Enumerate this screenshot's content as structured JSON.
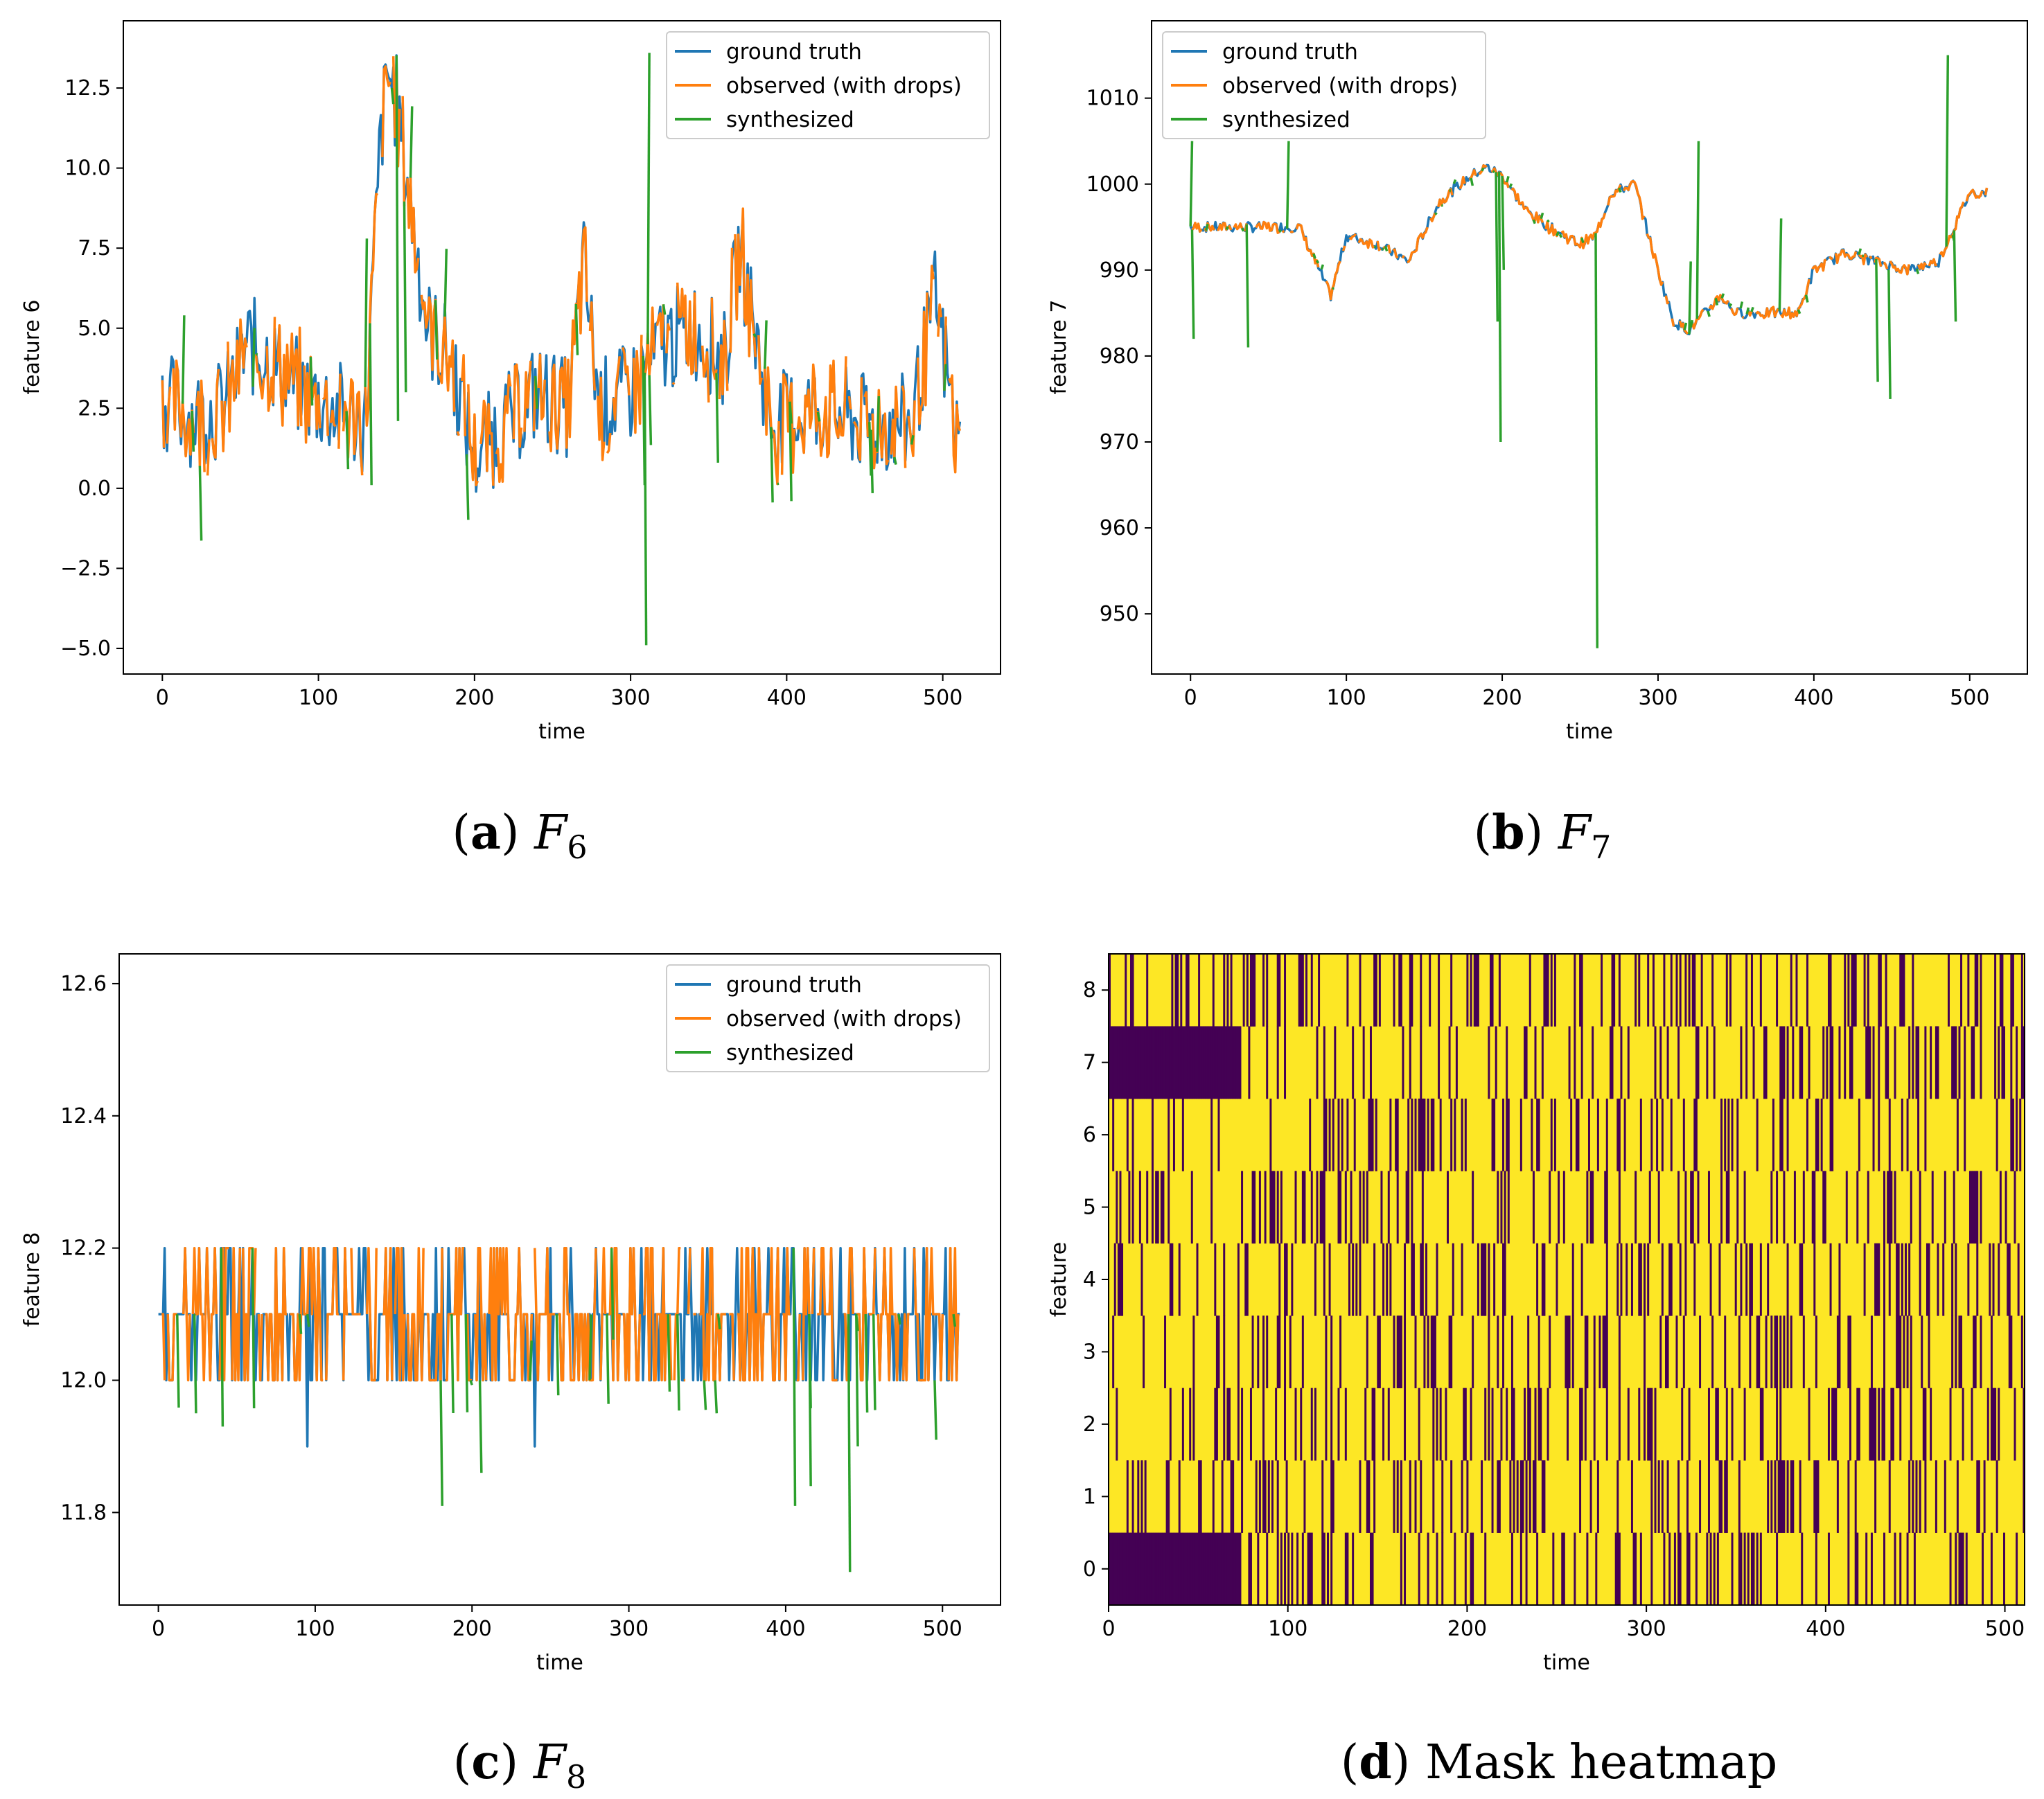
{
  "chart_data": [
    {
      "id": "a",
      "type": "line",
      "caption": {
        "letter": "a",
        "text": "F",
        "sub": "6"
      },
      "xlabel": "time",
      "ylabel": "feature 6",
      "xlim": [
        -25,
        537
      ],
      "ylim": [
        -5.8,
        14.6
      ],
      "xticks": [
        0,
        100,
        200,
        300,
        400,
        500
      ],
      "yticks": [
        -5.0,
        -2.5,
        0.0,
        2.5,
        5.0,
        7.5,
        10.0,
        12.5
      ],
      "ytick_labels": [
        "−5.0",
        "−2.5",
        "0.0",
        "2.5",
        "5.0",
        "7.5",
        "10.0",
        "12.5"
      ],
      "legend_position": "top-right",
      "legend": [
        "ground truth",
        "observed (with drops)",
        "synthesized"
      ],
      "colors": {
        "ground truth": "#1f77b4",
        "observed (with drops)": "#ff7f0e",
        "synthesized": "#2ca02c"
      },
      "series_profile": {
        "base": [
          [
            0,
            2.8
          ],
          [
            20,
            2.2
          ],
          [
            40,
            2.5
          ],
          [
            55,
            4.5
          ],
          [
            70,
            4.0
          ],
          [
            90,
            3.0
          ],
          [
            110,
            2.5
          ],
          [
            130,
            2.0
          ],
          [
            140,
            11.0
          ],
          [
            145,
            13.0
          ],
          [
            150,
            12.0
          ],
          [
            160,
            8.5
          ],
          [
            170,
            5.0
          ],
          [
            185,
            4.0
          ],
          [
            200,
            1.0
          ],
          [
            220,
            2.0
          ],
          [
            240,
            3.0
          ],
          [
            260,
            2.5
          ],
          [
            270,
            7.0
          ],
          [
            280,
            2.5
          ],
          [
            300,
            3.0
          ],
          [
            320,
            4.5
          ],
          [
            340,
            5.0
          ],
          [
            360,
            4.0
          ],
          [
            370,
            7.5
          ],
          [
            390,
            2.0
          ],
          [
            420,
            2.5
          ],
          [
            450,
            2.0
          ],
          [
            480,
            2.0
          ],
          [
            495,
            6.0
          ],
          [
            510,
            1.2
          ]
        ],
        "noise": 1.6,
        "seed": 6,
        "synth_spikes": [
          [
            13,
            5.4
          ],
          [
            130,
            7.8
          ],
          [
            133,
            0.1
          ],
          [
            147,
            12.0
          ],
          [
            150,
            2.1
          ],
          [
            155,
            3.0
          ],
          [
            308,
            0.1
          ],
          [
            309,
            -4.9
          ],
          [
            311,
            13.6
          ],
          [
            402,
            -0.4
          ],
          [
            355,
            0.8
          ]
        ]
      }
    },
    {
      "id": "b",
      "type": "line",
      "caption": {
        "letter": "b",
        "text": "F",
        "sub": "7"
      },
      "xlabel": "time",
      "ylabel": "feature 7",
      "xlim": [
        -25,
        537
      ],
      "ylim": [
        943,
        1019
      ],
      "xticks": [
        0,
        100,
        200,
        300,
        400,
        500
      ],
      "yticks": [
        950,
        960,
        970,
        980,
        990,
        1000,
        1010
      ],
      "ytick_labels": [
        "950",
        "960",
        "970",
        "980",
        "990",
        "1000",
        "1010"
      ],
      "legend_position": "top-left",
      "legend": [
        "ground truth",
        "observed (with drops)",
        "synthesized"
      ],
      "colors": {
        "ground truth": "#1f77b4",
        "observed (with drops)": "#ff7f0e",
        "synthesized": "#2ca02c"
      },
      "series_profile": {
        "base": [
          [
            0,
            995
          ],
          [
            70,
            995
          ],
          [
            90,
            987
          ],
          [
            100,
            994
          ],
          [
            120,
            993
          ],
          [
            140,
            991
          ],
          [
            160,
            998
          ],
          [
            180,
            1001
          ],
          [
            190,
            1002
          ],
          [
            200,
            1001
          ],
          [
            215,
            997
          ],
          [
            230,
            995
          ],
          [
            250,
            993
          ],
          [
            260,
            994
          ],
          [
            270,
            999
          ],
          [
            285,
            1000
          ],
          [
            300,
            990
          ],
          [
            310,
            984
          ],
          [
            320,
            983
          ],
          [
            330,
            985
          ],
          [
            340,
            987
          ],
          [
            350,
            985
          ],
          [
            370,
            985
          ],
          [
            390,
            985
          ],
          [
            400,
            990
          ],
          [
            420,
            992
          ],
          [
            440,
            991
          ],
          [
            460,
            990
          ],
          [
            480,
            991
          ],
          [
            490,
            995
          ],
          [
            500,
            999
          ],
          [
            510,
            999
          ]
        ],
        "noise": 0.6,
        "seed": 7,
        "synth_spikes": [
          [
            0,
            1005
          ],
          [
            1,
            982
          ],
          [
            36,
            981
          ],
          [
            62,
            1005
          ],
          [
            196,
            984
          ],
          [
            198,
            970
          ],
          [
            200,
            990
          ],
          [
            260,
            946
          ],
          [
            325,
            1005
          ],
          [
            320,
            991
          ],
          [
            378,
            996
          ],
          [
            440,
            977
          ],
          [
            448,
            975
          ],
          [
            485,
            1015
          ],
          [
            490,
            984
          ]
        ]
      }
    },
    {
      "id": "c",
      "type": "line",
      "caption": {
        "letter": "c",
        "text": "F",
        "sub": "8"
      },
      "xlabel": "time",
      "ylabel": "feature 8",
      "xlim": [
        -25,
        537
      ],
      "ylim": [
        11.66,
        12.645
      ],
      "xticks": [
        0,
        100,
        200,
        300,
        400,
        500
      ],
      "yticks": [
        11.8,
        12.0,
        12.2,
        12.4,
        12.6
      ],
      "ytick_labels": [
        "11.8",
        "12.0",
        "12.2",
        "12.4",
        "12.6"
      ],
      "legend_position": "top-right",
      "legend": [
        "ground truth",
        "observed (with drops)",
        "synthesized"
      ],
      "colors": {
        "ground truth": "#1f77b4",
        "observed (with drops)": "#ff7f0e",
        "synthesized": "#2ca02c"
      },
      "series_profile": {
        "levels": [
          12.0,
          12.1,
          12.2
        ],
        "seed": 8,
        "synth_spikes": [
          [
            23,
            11.95
          ],
          [
            40,
            11.93
          ],
          [
            90,
            12.07
          ],
          [
            180,
            11.81
          ],
          [
            205,
            11.86
          ],
          [
            355,
            11.95
          ],
          [
            405,
            11.81
          ],
          [
            415,
            11.84
          ],
          [
            440,
            11.71
          ],
          [
            445,
            11.9
          ],
          [
            495,
            11.91
          ]
        ],
        "gt_dips": [
          [
            95,
            11.9
          ],
          [
            240,
            11.9
          ]
        ]
      }
    },
    {
      "id": "d",
      "type": "heatmap",
      "caption": {
        "letter": "d",
        "text": "Mask heatmap"
      },
      "xlabel": "time",
      "ylabel": "feature",
      "xlim": [
        0,
        511
      ],
      "ylim": [
        -0.5,
        8.5
      ],
      "xticks": [
        0,
        100,
        200,
        300,
        400,
        500
      ],
      "yticks": [
        0,
        1,
        2,
        3,
        4,
        5,
        6,
        7,
        8
      ],
      "ytick_labels": [
        "0",
        "1",
        "2",
        "3",
        "4",
        "5",
        "6",
        "7",
        "8"
      ],
      "colormap": [
        "#440154",
        "#fde725"
      ],
      "mask_rule": "features 0 and 7 fully masked for time 0-74; elsewhere dense random dark stripes",
      "masked_until": 74
    }
  ]
}
